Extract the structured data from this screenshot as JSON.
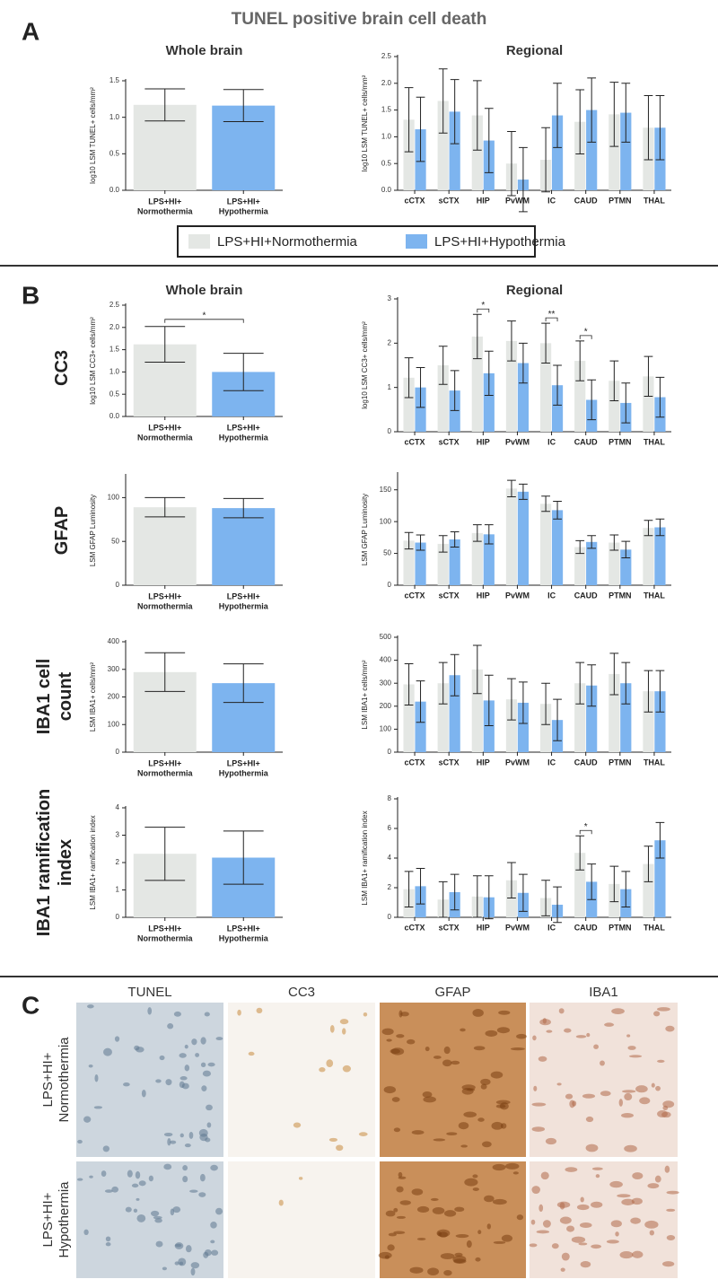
{
  "title": "TUNEL positive brain cell death",
  "panel_labels": [
    "A",
    "B",
    "C"
  ],
  "row_labels": [
    "CC3",
    "GFAP",
    "IBA1 cell count",
    "IBA1 ramification index"
  ],
  "micrographs": {
    "columns": [
      "TUNEL",
      "CC3",
      "GFAP",
      "IBA1"
    ],
    "rows": [
      "LPS+HI+ Normothermia",
      "LPS+HI+ Hypothermia"
    ]
  },
  "chart_data": [
    {
      "type": "bar",
      "title": "Whole brain",
      "y_label": "log10 LSM TUNEL+ cells/mm²",
      "categories": [
        "LPS+HI+ Normothermia",
        "LPS+HI+ Hypothermia"
      ],
      "colors": [
        "#e4e7e4",
        "#7db4ef"
      ],
      "values": [
        1.17,
        1.16
      ],
      "errors": [
        0.22,
        0.22
      ],
      "ylim": [
        0,
        1.5
      ],
      "yticks": [
        {
          "value": 0,
          "label": "0.0"
        },
        {
          "value": 0.5,
          "label": "0.5"
        },
        {
          "value": 1,
          "label": "1.0"
        },
        {
          "value": 1.5,
          "label": "1.5"
        }
      ]
    },
    {
      "type": "bar",
      "title": "Regional",
      "y_label": "log10 LSM TUNEL+ cells/mm²",
      "categories": [
        "cCTX",
        "sCTX",
        "HIP",
        "PvWM",
        "IC",
        "CAUD",
        "PTMN",
        "THAL"
      ],
      "series": [
        {
          "name": "LPS+HI+Normothermia",
          "color": "#e4e7e4",
          "values": [
            1.32,
            1.67,
            1.4,
            0.5,
            0.57,
            1.28,
            1.42,
            1.17
          ],
          "errors": [
            0.6,
            0.6,
            0.65,
            0.6,
            0.6,
            0.6,
            0.6,
            0.6
          ]
        },
        {
          "name": "LPS+HI+Hypothermia",
          "color": "#7db4ef",
          "values": [
            1.14,
            1.47,
            0.93,
            0.2,
            1.4,
            1.5,
            1.45,
            1.17
          ],
          "errors": [
            0.6,
            0.6,
            0.6,
            0.6,
            0.6,
            0.6,
            0.55,
            0.6
          ]
        }
      ],
      "ylim": [
        0,
        2.5
      ],
      "yticks": [
        {
          "value": 0,
          "label": "0.0"
        },
        {
          "value": 0.5,
          "label": "0.5"
        },
        {
          "value": 1,
          "label": "1.0"
        },
        {
          "value": 1.5,
          "label": "1.5"
        },
        {
          "value": 2,
          "label": "2.0"
        },
        {
          "value": 2.5,
          "label": "2.5"
        }
      ]
    },
    {
      "type": "bar",
      "title": "Whole brain",
      "y_label": "log10 LSM CC3+ cells/mm²",
      "categories": [
        "LPS+HI+ Normothermia",
        "LPS+HI+ Hypothermia"
      ],
      "colors": [
        "#e4e7e4",
        "#7db4ef"
      ],
      "values": [
        1.62,
        1.0
      ],
      "errors": [
        0.4,
        0.42
      ],
      "annotations": [
        {
          "label": "*"
        }
      ],
      "ylim": [
        0,
        2.5
      ],
      "yticks": [
        {
          "value": 0,
          "label": "0.0"
        },
        {
          "value": 0.5,
          "label": "0.5"
        },
        {
          "value": 1,
          "label": "1.0"
        },
        {
          "value": 1.5,
          "label": "1.5"
        },
        {
          "value": 2,
          "label": "2.0"
        },
        {
          "value": 2.5,
          "label": "2.5"
        }
      ]
    },
    {
      "type": "bar",
      "title": "Regional",
      "y_label": "log10 LSM CC3+ cells/mm²",
      "categories": [
        "cCTX",
        "sCTX",
        "HIP",
        "PvWM",
        "IC",
        "CAUD",
        "PTMN",
        "THAL"
      ],
      "series": [
        {
          "name": "LPS+HI+Normothermia",
          "color": "#e4e7e4",
          "values": [
            1.22,
            1.5,
            2.15,
            2.05,
            2.0,
            1.6,
            1.15,
            1.25
          ],
          "errors": [
            0.45,
            0.43,
            0.5,
            0.45,
            0.45,
            0.45,
            0.45,
            0.45
          ]
        },
        {
          "name": "LPS+HI+Hypothermia",
          "color": "#7db4ef",
          "values": [
            1.0,
            0.93,
            1.32,
            1.55,
            1.05,
            0.72,
            0.65,
            0.78
          ],
          "errors": [
            0.45,
            0.45,
            0.5,
            0.45,
            0.45,
            0.45,
            0.45,
            0.45
          ]
        }
      ],
      "annotations": [
        {
          "category": "HIP",
          "label": "*"
        },
        {
          "category": "IC",
          "label": "**"
        },
        {
          "category": "CAUD",
          "label": "*"
        }
      ],
      "ylim": [
        0,
        3
      ],
      "yticks": [
        0,
        1,
        2,
        3
      ]
    },
    {
      "type": "bar",
      "y_label": "LSM GFAP Luminosity",
      "categories": [
        "LPS+HI+ Normothermia",
        "LPS+HI+ Hypothermia"
      ],
      "colors": [
        "#e4e7e4",
        "#7db4ef"
      ],
      "values": [
        89,
        88
      ],
      "errors": [
        11,
        11
      ],
      "ylim": [
        0,
        125
      ],
      "yticks": [
        0,
        50,
        100
      ]
    },
    {
      "type": "bar",
      "y_label": "LSM GFAP Luminosity",
      "categories": [
        "cCTX",
        "sCTX",
        "HIP",
        "PvWM",
        "IC",
        "CAUD",
        "PTMN",
        "THAL"
      ],
      "series": [
        {
          "name": "LPS+HI+Normothermia",
          "color": "#e4e7e4",
          "values": [
            70,
            65,
            82,
            152,
            128,
            60,
            67,
            90
          ],
          "errors": [
            13,
            13,
            13,
            13,
            12,
            10,
            12,
            12
          ]
        },
        {
          "name": "LPS+HI+Hypothermia",
          "color": "#7db4ef",
          "values": [
            67,
            72,
            80,
            147,
            118,
            68,
            56,
            91
          ],
          "errors": [
            12,
            12,
            15,
            12,
            14,
            10,
            13,
            13
          ]
        }
      ],
      "ylim": [
        0,
        175
      ],
      "yticks": [
        0,
        50,
        100,
        150
      ]
    },
    {
      "type": "bar",
      "y_label": "LSM IBA1+ cells/mm²",
      "categories": [
        "LPS+HI+ Normothermia",
        "LPS+HI+ Hypothermia"
      ],
      "colors": [
        "#e4e7e4",
        "#7db4ef"
      ],
      "values": [
        290,
        250
      ],
      "errors": [
        70,
        70
      ],
      "ylim": [
        0,
        400
      ],
      "yticks": [
        0,
        100,
        200,
        300,
        400
      ]
    },
    {
      "type": "bar",
      "y_label": "LSM IBA1+ cells/mm²",
      "categories": [
        "cCTX",
        "sCTX",
        "HIP",
        "PvWM",
        "IC",
        "CAUD",
        "PTMN",
        "THAL"
      ],
      "series": [
        {
          "name": "LPS+HI+Normothermia",
          "color": "#e4e7e4",
          "values": [
            295,
            300,
            360,
            230,
            210,
            300,
            340,
            265
          ],
          "errors": [
            90,
            90,
            105,
            90,
            90,
            90,
            90,
            90
          ]
        },
        {
          "name": "LPS+HI+Hypothermia",
          "color": "#7db4ef",
          "values": [
            220,
            335,
            225,
            215,
            140,
            290,
            300,
            265
          ],
          "errors": [
            90,
            90,
            110,
            90,
            90,
            90,
            90,
            90
          ]
        }
      ],
      "ylim": [
        0,
        500
      ],
      "yticks": [
        0,
        100,
        200,
        300,
        400,
        500
      ]
    },
    {
      "type": "bar",
      "y_label": "LSM IBA1+ ramification index",
      "categories": [
        "LPS+HI+ Normothermia",
        "LPS+HI+ Hypothermia"
      ],
      "colors": [
        "#e4e7e4",
        "#7db4ef"
      ],
      "values": [
        2.32,
        2.18
      ],
      "errors": [
        0.97,
        0.97
      ],
      "ylim": [
        0,
        4
      ],
      "yticks": [
        0,
        1,
        2,
        3,
        4
      ]
    },
    {
      "type": "bar",
      "y_label": "LSM IBA1+ ramification index",
      "categories": [
        "cCTX",
        "sCTX",
        "HIP",
        "PvWM",
        "IC",
        "CAUD",
        "PTMN",
        "THAL"
      ],
      "series": [
        {
          "name": "LPS+HI+Normothermia",
          "color": "#e4e7e4",
          "values": [
            1.9,
            1.2,
            1.4,
            2.5,
            1.3,
            4.35,
            2.25,
            3.6
          ],
          "errors": [
            1.2,
            1.2,
            1.4,
            1.2,
            1.2,
            1.15,
            1.2,
            1.2
          ]
        },
        {
          "name": "LPS+HI+Hypothermia",
          "color": "#7db4ef",
          "values": [
            2.1,
            1.7,
            1.35,
            1.65,
            0.85,
            2.4,
            1.9,
            5.2
          ],
          "errors": [
            1.2,
            1.2,
            1.45,
            1.25,
            1.2,
            1.2,
            1.2,
            1.2
          ]
        }
      ],
      "annotations": [
        {
          "category": "CAUD",
          "label": "*"
        }
      ],
      "ylim": [
        0,
        8
      ],
      "yticks": [
        0,
        2,
        4,
        6,
        8
      ]
    }
  ]
}
